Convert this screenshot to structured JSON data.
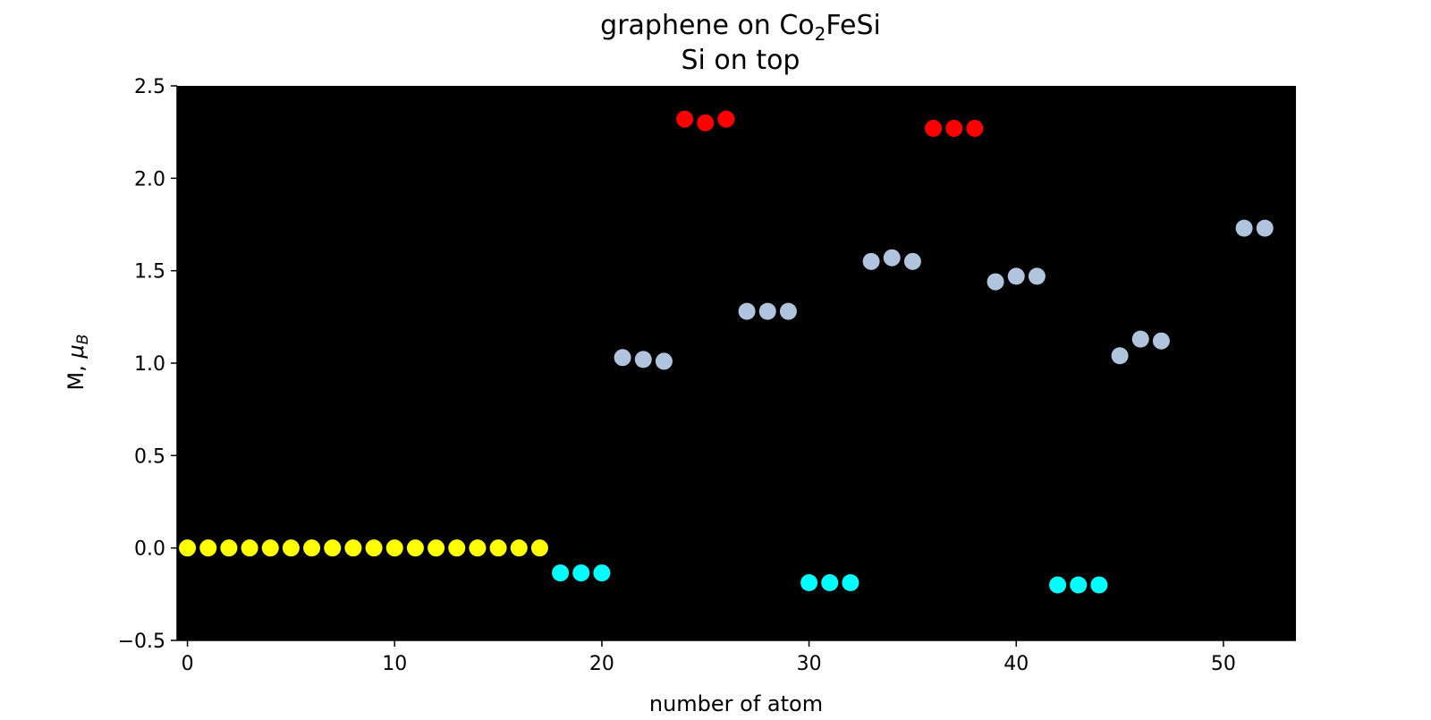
{
  "chart_data": {
    "type": "scatter",
    "title_main": "graphene on Co",
    "title_subscript": "2",
    "title_suffix": "FeSi",
    "subtitle": "Si on top",
    "xlabel": "number of atom",
    "ylabel_main": "M, ",
    "ylabel_mu": "μ",
    "ylabel_subscript": "B",
    "xlim": [
      -0.5,
      53.5
    ],
    "ylim": [
      -0.5,
      2.5
    ],
    "x_ticks": [
      0,
      10,
      20,
      30,
      40,
      50
    ],
    "x_tick_labels": [
      "0",
      "10",
      "20",
      "30",
      "40",
      "50"
    ],
    "y_ticks": [
      -0.5,
      0.0,
      0.5,
      1.0,
      1.5,
      2.0,
      2.5
    ],
    "y_tick_labels": [
      "−0.5",
      "0.0",
      "0.5",
      "1.0",
      "1.5",
      "2.0",
      "2.5"
    ],
    "grid": false,
    "plot_background": "#000000",
    "series": [
      {
        "color": "#ffff00",
        "x": [
          0,
          1,
          2,
          3,
          4,
          5,
          6,
          7,
          8,
          9,
          10,
          11,
          12,
          13,
          14,
          15,
          16,
          17
        ],
        "y": [
          0,
          0,
          0,
          0,
          0,
          0,
          0,
          0,
          0,
          0,
          0,
          0,
          0,
          0,
          0,
          0,
          0,
          0
        ]
      },
      {
        "color": "#00ffff",
        "x": [
          18,
          19,
          20,
          30,
          31,
          32,
          42,
          43,
          44
        ],
        "y": [
          -0.135,
          -0.135,
          -0.135,
          -0.188,
          -0.188,
          -0.188,
          -0.2,
          -0.2,
          -0.2
        ]
      },
      {
        "color": "#b0c4de",
        "x": [
          21,
          22,
          23,
          27,
          28,
          29,
          33,
          34,
          35,
          39,
          40,
          41,
          45,
          46,
          47,
          51,
          52
        ],
        "y": [
          1.03,
          1.02,
          1.01,
          1.28,
          1.28,
          1.28,
          1.55,
          1.57,
          1.55,
          1.44,
          1.47,
          1.47,
          1.04,
          1.13,
          1.12,
          1.73,
          1.73
        ]
      },
      {
        "color": "#ff0000",
        "x": [
          24,
          25,
          26,
          36,
          37,
          38
        ],
        "y": [
          2.32,
          2.3,
          2.32,
          2.27,
          2.27,
          2.27
        ]
      }
    ]
  }
}
